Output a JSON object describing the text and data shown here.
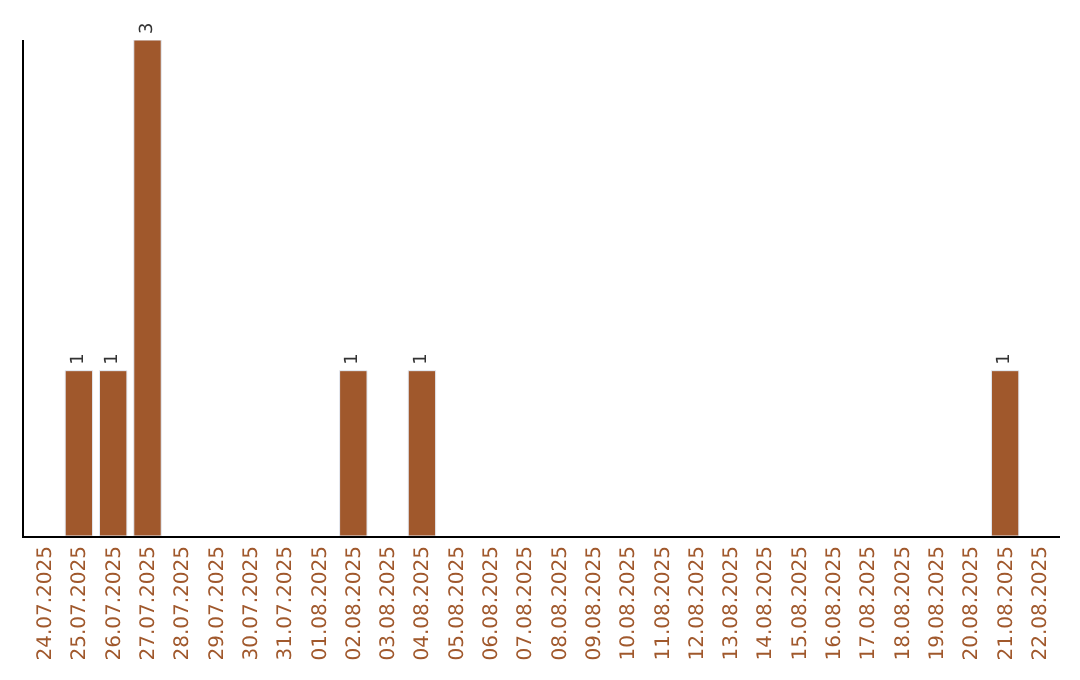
{
  "chart_data": {
    "type": "bar",
    "color": "#a0582c",
    "categories": [
      "24.07.2025",
      "25.07.2025",
      "26.07.2025",
      "27.07.2025",
      "28.07.2025",
      "29.07.2025",
      "30.07.2025",
      "31.07.2025",
      "01.08.2025",
      "02.08.2025",
      "03.08.2025",
      "04.08.2025",
      "05.08.2025",
      "06.08.2025",
      "07.08.2025",
      "08.08.2025",
      "09.08.2025",
      "10.08.2025",
      "11.08.2025",
      "12.08.2025",
      "13.08.2025",
      "14.08.2025",
      "15.08.2025",
      "16.08.2025",
      "17.08.2025",
      "18.08.2025",
      "19.08.2025",
      "20.08.2025",
      "21.08.2025",
      "22.08.2025"
    ],
    "values": [
      null,
      1,
      1,
      3,
      null,
      null,
      null,
      null,
      null,
      1,
      null,
      1,
      null,
      null,
      null,
      null,
      null,
      null,
      null,
      null,
      null,
      null,
      null,
      null,
      null,
      null,
      null,
      null,
      1,
      null
    ],
    "value_labels": [
      null,
      "1",
      "1",
      "3",
      null,
      null,
      null,
      null,
      null,
      "1",
      null,
      "1",
      null,
      null,
      null,
      null,
      null,
      null,
      null,
      null,
      null,
      null,
      null,
      null,
      null,
      null,
      null,
      null,
      "1",
      null
    ],
    "legend": false
  }
}
